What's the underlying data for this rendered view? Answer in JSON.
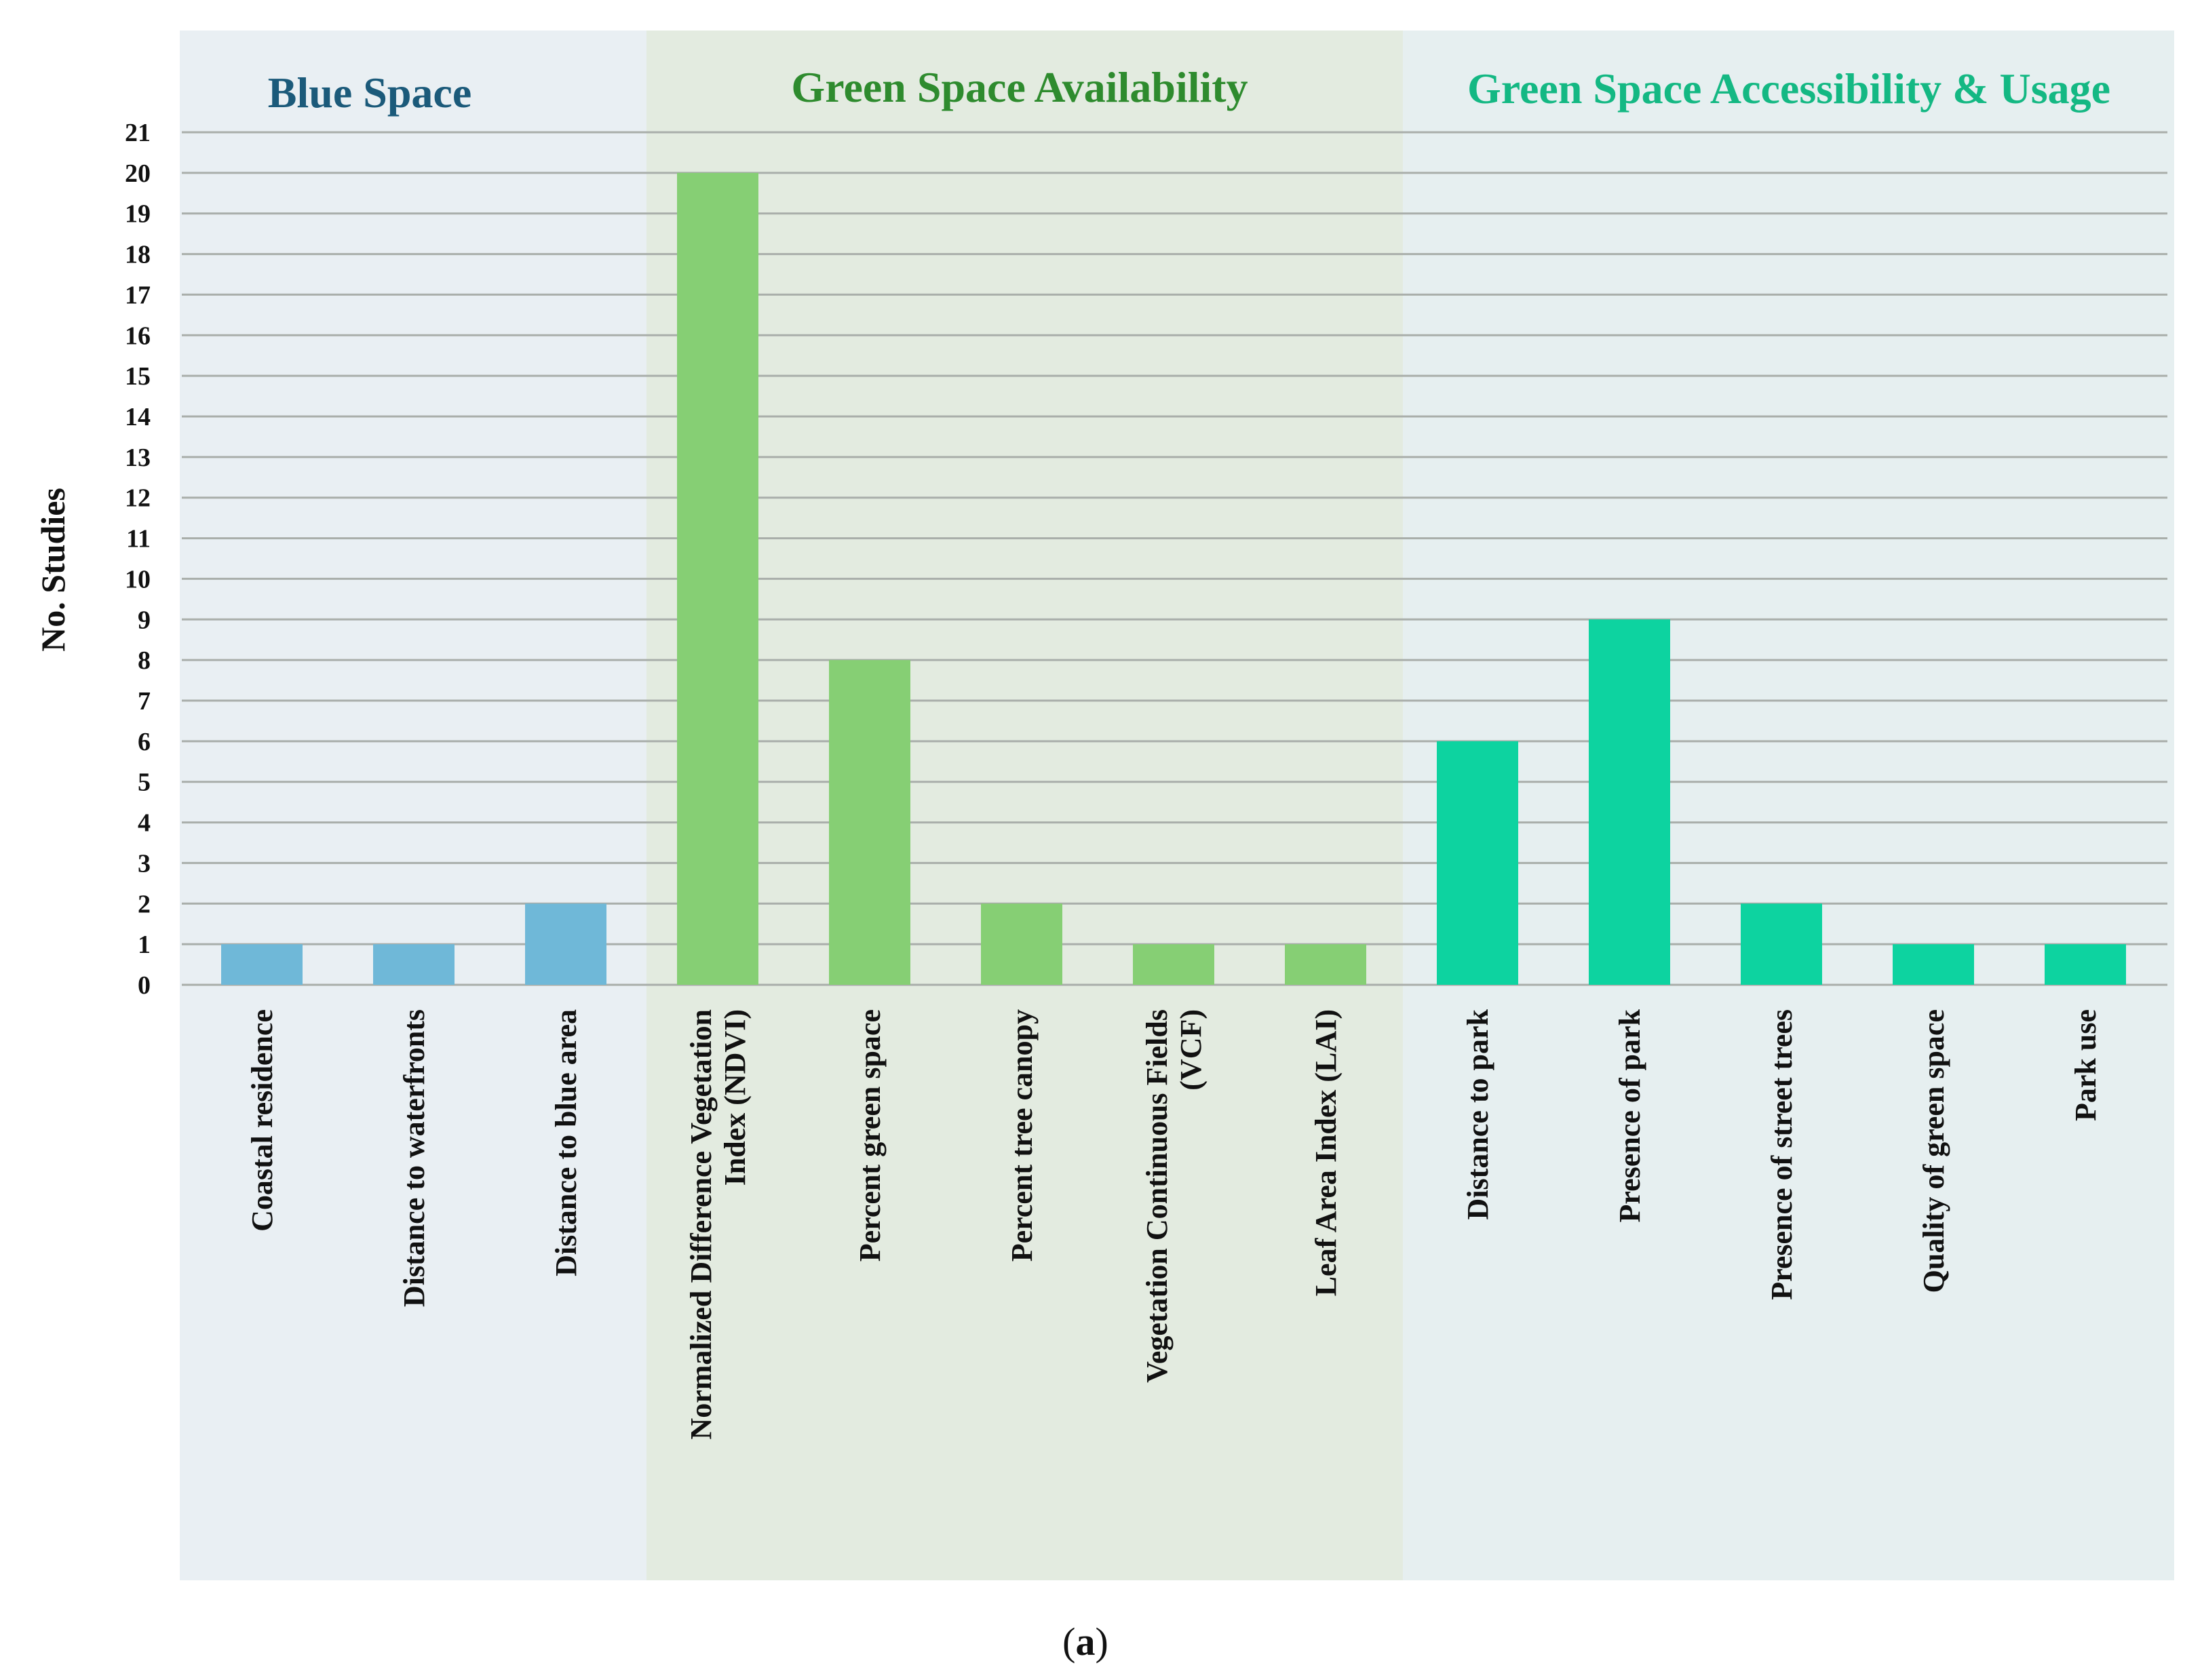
{
  "chart_data": {
    "type": "bar",
    "ylabel": "No. Studies",
    "ylim": [
      0,
      21
    ],
    "yticks": [
      0,
      1,
      2,
      3,
      4,
      5,
      6,
      7,
      8,
      9,
      10,
      11,
      12,
      13,
      14,
      15,
      16,
      17,
      18,
      19,
      20,
      21
    ],
    "grid": true,
    "caption": {
      "open": "(",
      "letter": "a",
      "close": ")"
    },
    "groups": [
      {
        "name": "Blue Space",
        "title_color": "#1b5a7a",
        "bg_color": "#e9eff3",
        "bar_color": "#6fb8d8",
        "categories": [
          {
            "label": [
              "Coastal residence"
            ],
            "value": 1
          },
          {
            "label": [
              "Distance to waterfronts"
            ],
            "value": 1
          },
          {
            "label": [
              "Distance to blue area"
            ],
            "value": 2
          }
        ]
      },
      {
        "name": "Green Space Availability",
        "title_color": "#2e8b2e",
        "bg_color": "#e3ebe0",
        "bar_color": "#86cf74",
        "categories": [
          {
            "label": [
              "Normalized Difference Vegetation",
              "Index (NDVI)"
            ],
            "value": 20
          },
          {
            "label": [
              "Percent green space"
            ],
            "value": 8
          },
          {
            "label": [
              "Percent tree canopy"
            ],
            "value": 2
          },
          {
            "label": [
              "Vegetation Continuous Fields",
              "(VCF)"
            ],
            "value": 1
          },
          {
            "label": [
              "Leaf Area Index (LAI)"
            ],
            "value": 1
          }
        ]
      },
      {
        "name": "Green Space Accessibility & Usage",
        "title_color": "#14b883",
        "bg_color": "#e6eff0",
        "bar_color": "#0dd3a0",
        "categories": [
          {
            "label": [
              "Distance to park"
            ],
            "value": 6
          },
          {
            "label": [
              "Presence of park"
            ],
            "value": 9
          },
          {
            "label": [
              "Presence of street trees"
            ],
            "value": 2
          },
          {
            "label": [
              "Quality of green space"
            ],
            "value": 1
          },
          {
            "label": [
              "Park use"
            ],
            "value": 1
          }
        ]
      }
    ]
  }
}
